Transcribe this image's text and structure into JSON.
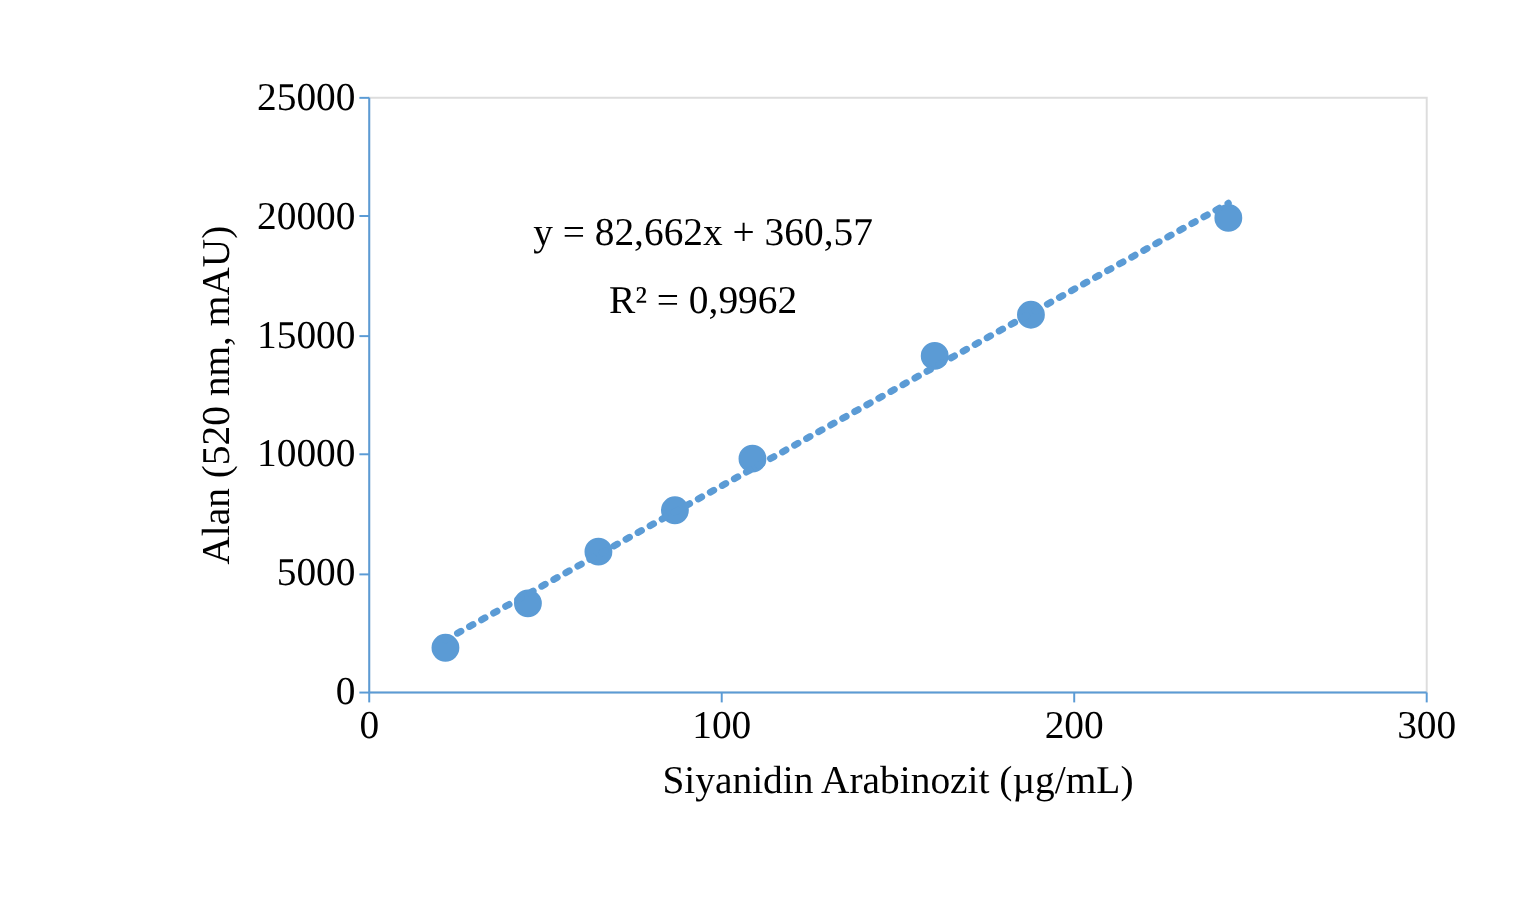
{
  "chart_data": {
    "type": "scatter",
    "xlabel": "Siyanidin Arabinozit  (µg/mL)",
    "ylabel": "Alan (520 nm, mAU)",
    "series": [
      {
        "color": "#5b9bd5",
        "marker": "circle",
        "x": [
          21.9,
          45.3,
          65.3,
          87,
          109,
          160.7,
          188,
          244
        ],
        "values": [
          1840,
          3710,
          5880,
          7620,
          9790,
          14110,
          15840,
          19910
        ]
      },
      {
        "type": "line",
        "color": "#5b9bd5",
        "line_style": "dotted",
        "x": [
          21.9,
          244
        ],
        "values": [
          2171,
          20530
        ]
      }
    ],
    "annotations": [
      "y = 82,662x + 360,57",
      "R² = 0,9962"
    ],
    "xlim": [
      0,
      300
    ],
    "xticks": [
      0,
      100,
      200,
      300
    ],
    "ylim": [
      0,
      25000
    ],
    "yticks": [
      0,
      5000,
      10000,
      15000,
      20000,
      25000
    ],
    "grid": false
  }
}
